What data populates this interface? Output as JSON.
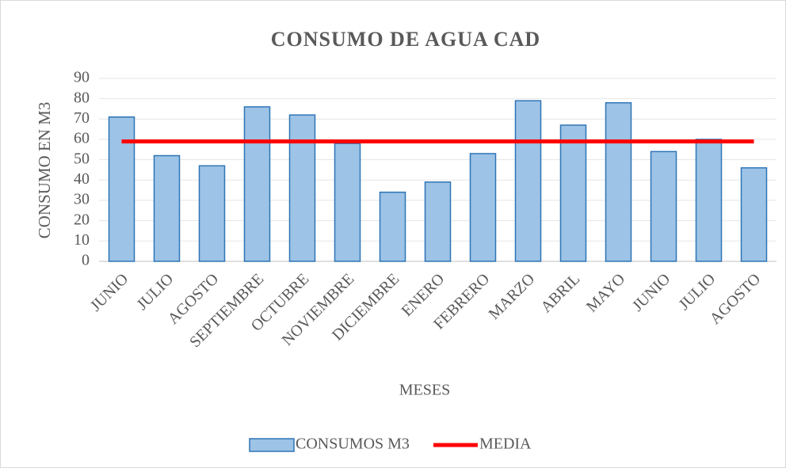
{
  "chart_data": {
    "type": "bar",
    "title": "CONSUMO DE AGUA CAD",
    "x_label": "MESES",
    "y_label": "CONSUMO EN M3",
    "categories": [
      "JUNIO",
      "JULIO",
      "AGOSTO",
      "SEPTIEMBRE",
      "OCTUBRE",
      "NOVIEMBRE",
      "DICIEMBRE",
      "ENERO",
      "FEBRERO",
      "MARZO",
      "ABRIL",
      "MAYO",
      "JUNIO",
      "JULIO",
      "AGOSTO"
    ],
    "series": [
      {
        "name": "CONSUMOS M3",
        "type": "bar",
        "color": "#9dc3e6",
        "values": [
          71,
          52,
          47,
          76,
          72,
          58,
          34,
          39,
          53,
          79,
          67,
          78,
          54,
          60,
          46
        ]
      },
      {
        "name": "MEDIA",
        "type": "line",
        "color": "#ff0000",
        "values": [
          59,
          59,
          59,
          59,
          59,
          59,
          59,
          59,
          59,
          59,
          59,
          59,
          59,
          59,
          59
        ]
      }
    ],
    "ylim": [
      0,
      90
    ],
    "yticks": [
      0,
      10,
      20,
      30,
      40,
      50,
      60,
      70,
      80,
      90
    ],
    "grid": true,
    "legend": "bottom"
  }
}
